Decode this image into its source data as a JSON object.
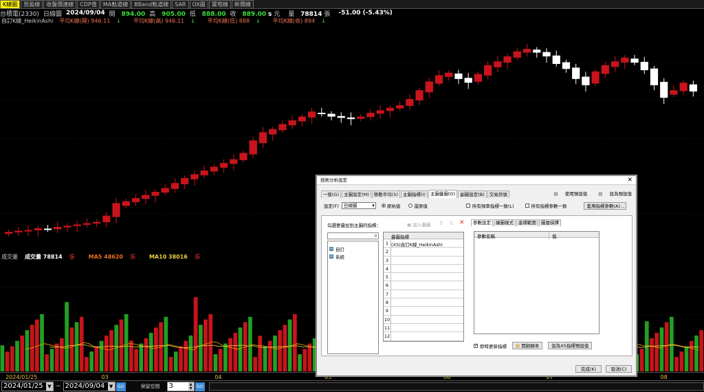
{
  "tabs": [
    "K線圖",
    "勞盈線",
    "收盤價連線",
    "CDP值",
    "MA軌道線",
    "BBand軌道線",
    "SAR",
    "OX圖",
    "寶塔線",
    "新價線"
  ],
  "info": {
    "stock": "台積電(2330)",
    "period": "日線圖",
    "date": "2024/09/04",
    "open_label": "開",
    "open": "894.00",
    "high_label": "高",
    "high": "905.00",
    "low_label": "低",
    "low": "888.00",
    "close_label": "收",
    "close": "889.00",
    "close_flag": "s",
    "unit": "元",
    "vol_label": "量",
    "volume": "78814",
    "vol_unit": "張",
    "change": "-51.00 (-5.43%)"
  },
  "price_legend": {
    "title": "自訂K線_HeikinAshi",
    "open": "平均K線(開) 946.11",
    "high": "平均K線(高) 946.11",
    "low": "平均K線(低) 888",
    "close": "平均K線(收) 894"
  },
  "vol_legend": {
    "title": "成交量",
    "vol": "成交量 78814",
    "vol_unit": "張",
    "ma5": "MA5 48620",
    "ma5_unit": "張",
    "ma10": "MA10 38016",
    "ma10_unit": "張"
  },
  "xaxis": [
    {
      "label": "2024/01/25",
      "pos": 0.008
    },
    {
      "label": "03",
      "pos": 0.144
    },
    {
      "label": "04",
      "pos": 0.305
    },
    {
      "label": "05",
      "pos": 0.461
    },
    {
      "label": "06",
      "pos": 0.63
    },
    {
      "label": "07",
      "pos": 0.776
    },
    {
      "label": "08",
      "pos": 0.938
    }
  ],
  "bottom": {
    "start_date": "2024/01/25",
    "sep": "~",
    "end_date": "2024/09/04",
    "go": "GO",
    "gap_label": "保留空間",
    "gap": "3"
  },
  "dialog": {
    "title": "技術分析設定",
    "tabs": [
      "一般(G)",
      "主圖設定(M)",
      "移動平均(S)",
      "主圖指標(I)",
      "主圖疊圖(O)",
      "副圖設定(B)",
      "交易訊號"
    ],
    "active_tab": 4,
    "use_preset": "使用預設值",
    "set_preset": "設為預設值",
    "setting_label": "設定(F)",
    "setting_value": "日線圖",
    "radio_orig": "原始值",
    "radio_adj": "還原值",
    "chk_all_cycle": "所有頻率指標一致(L)",
    "chk_all_param": "所有指標參數一致",
    "apply_params": "套用指標參數(A)...",
    "select_label": "勾選要疊加到主圖的指標：",
    "add_overlay": "加入疊圖",
    "tree": [
      "自訂",
      "系統"
    ],
    "grid_header": "疊圖指標",
    "grid_rows": [
      {
        "num": "1",
        "text": "(XS)自訂K線_HeikinAshi"
      },
      {
        "num": "2",
        "text": ""
      },
      {
        "num": "3",
        "text": ""
      },
      {
        "num": "4",
        "text": ""
      },
      {
        "num": "5",
        "text": ""
      },
      {
        "num": "6",
        "text": ""
      },
      {
        "num": "7",
        "text": ""
      },
      {
        "num": "8",
        "text": ""
      },
      {
        "num": "9",
        "text": ""
      },
      {
        "num": "10",
        "text": ""
      },
      {
        "num": "11",
        "text": ""
      },
      {
        "num": "12",
        "text": ""
      }
    ],
    "ptabs": [
      "參數設定",
      "繪圖樣式",
      "座標範圍",
      "圖層抉擇"
    ],
    "p_head_name": "參數名稱",
    "p_head_val": "值",
    "chk_sync": "即時更新指標",
    "open_script": "開啟腳本",
    "set_xs_default": "設為XS指標預設值",
    "ok": "完成(K)",
    "cancel": "取消(C)"
  },
  "colors": {
    "up": "#c8141c",
    "down": "#ffffff",
    "vol_up": "#c8141c",
    "vol_down": "#22a022",
    "ma5": "#e8a000",
    "ma10": "#e8d040"
  },
  "chart_data": {
    "type": "candlestick",
    "closes": [
      826,
      828,
      829,
      832,
      830,
      834,
      836,
      838,
      840,
      842,
      852,
      872,
      875,
      880,
      885,
      890,
      896,
      904,
      912,
      918,
      924,
      930,
      936,
      942,
      952,
      972,
      985,
      990,
      998,
      1004,
      1010,
      1018,
      1014,
      1010,
      1008,
      1006,
      1010,
      1016,
      1020,
      1024,
      1028,
      1038,
      1052,
      1066,
      1076,
      1080,
      1070,
      1064,
      1078,
      1092,
      1098,
      1106,
      1114,
      1118,
      1112,
      1106,
      1094,
      1086,
      1070,
      1060,
      1082,
      1092,
      1098,
      1104,
      1096,
      1084,
      1060,
      1040,
      1052,
      1064,
      1050
    ]
  }
}
